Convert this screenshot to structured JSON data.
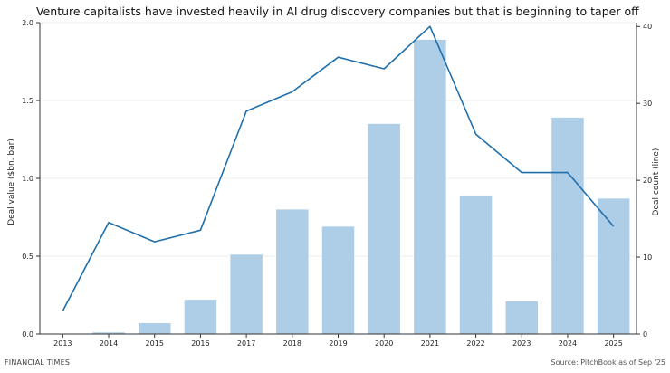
{
  "title": "Venture capitalists have invested heavily in AI drug discovery companies but that is beginning to taper off",
  "footer": {
    "brand": "FINANCIAL TIMES",
    "source": "Source: PitchBook as of Sep '25"
  },
  "chart_data": {
    "type": "bar",
    "title": "Venture capitalists have invested heavily in AI drug discovery companies but that is beginning to taper off",
    "categories": [
      "2013",
      "2014",
      "2015",
      "2016",
      "2017",
      "2018",
      "2019",
      "2020",
      "2021",
      "2022",
      "2023",
      "2024",
      "2025"
    ],
    "ylabel": "Deal value ($bn, bar)",
    "y2label": "Deal count (line)",
    "ylim": [
      0,
      2.0
    ],
    "y2lim": [
      0,
      40.5
    ],
    "yticks": [
      "0.0",
      "0.5",
      "1.0",
      "1.5",
      "2.0"
    ],
    "y2ticks": [
      "0",
      "10",
      "20",
      "30",
      "40"
    ],
    "grid": true,
    "series": [
      {
        "name": "Deal value ($bn, bar)",
        "type": "bar",
        "axis": "left",
        "color": "#aecde6",
        "values": [
          0.0,
          0.01,
          0.07,
          0.22,
          0.51,
          0.8,
          0.69,
          1.35,
          1.89,
          0.89,
          0.21,
          1.39,
          0.87
        ]
      },
      {
        "name": "Deal count (line)",
        "type": "line",
        "axis": "right",
        "color": "#1f6fad",
        "values": [
          3,
          14.5,
          12,
          13.5,
          29,
          31.5,
          36,
          34.5,
          40,
          26,
          21,
          21,
          14
        ]
      }
    ]
  }
}
